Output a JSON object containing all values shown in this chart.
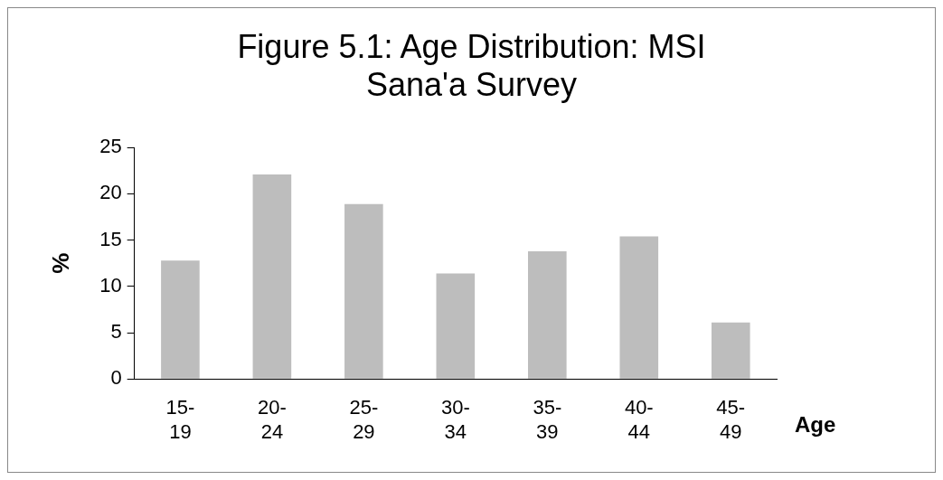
{
  "chart_data": {
    "type": "bar",
    "title": "Figure 5.1: Age Distribution: MSI Sana'a Survey",
    "xlabel": "Age",
    "ylabel": "%",
    "categories": [
      "15-19",
      "20-24",
      "25-29",
      "30-34",
      "35-39",
      "40-44",
      "45-49"
    ],
    "values": [
      12.8,
      22.1,
      18.9,
      11.4,
      13.8,
      15.4,
      6.1
    ],
    "color": "#bdbdbd",
    "ylim": [
      0,
      25
    ],
    "yticks": [
      0,
      5,
      10,
      15,
      20,
      25
    ],
    "grid": false,
    "legend": false
  }
}
